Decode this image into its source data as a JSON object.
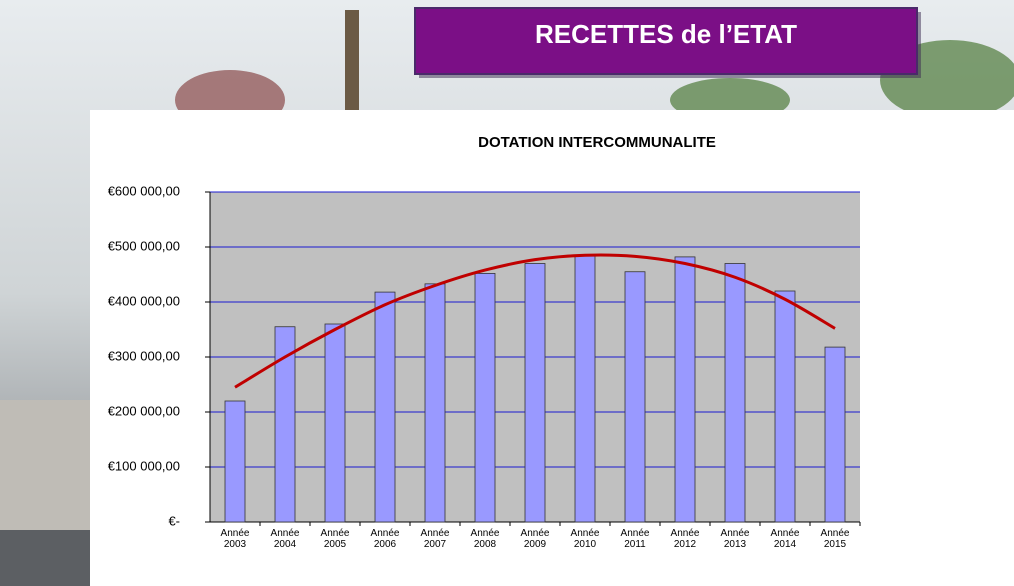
{
  "header": {
    "title": "RECETTES de l’ETAT"
  },
  "chart_data": {
    "type": "bar",
    "title": "DOTATION INTERCOMMUNALITE",
    "categories": [
      "Année 2003",
      "Année 2004",
      "Année 2005",
      "Année 2006",
      "Année 2007",
      "Année 2008",
      "Année 2009",
      "Année 2010",
      "Année 2011",
      "Année 2012",
      "Année 2013",
      "Année 2014",
      "Année 2015"
    ],
    "values": [
      220000,
      355000,
      360000,
      418000,
      433000,
      452000,
      470000,
      485000,
      455000,
      482000,
      470000,
      420000,
      318000
    ],
    "color": "#9999ff",
    "trendline": {
      "color": "#c00000",
      "values": [
        245000,
        300000,
        350000,
        395000,
        430000,
        458000,
        477000,
        485000,
        483000,
        470000,
        445000,
        405000,
        352000
      ]
    },
    "ylim": [
      0,
      600000
    ],
    "yticks": [
      {
        "value": 0,
        "label": "€-"
      },
      {
        "value": 100000,
        "label": "€100 000,00"
      },
      {
        "value": 200000,
        "label": "€200 000,00"
      },
      {
        "value": 300000,
        "label": "€300 000,00"
      },
      {
        "value": 400000,
        "label": "€400 000,00"
      },
      {
        "value": 500000,
        "label": "€500 000,00"
      },
      {
        "value": 600000,
        "label": "€600 000,00"
      }
    ],
    "grid": true
  }
}
